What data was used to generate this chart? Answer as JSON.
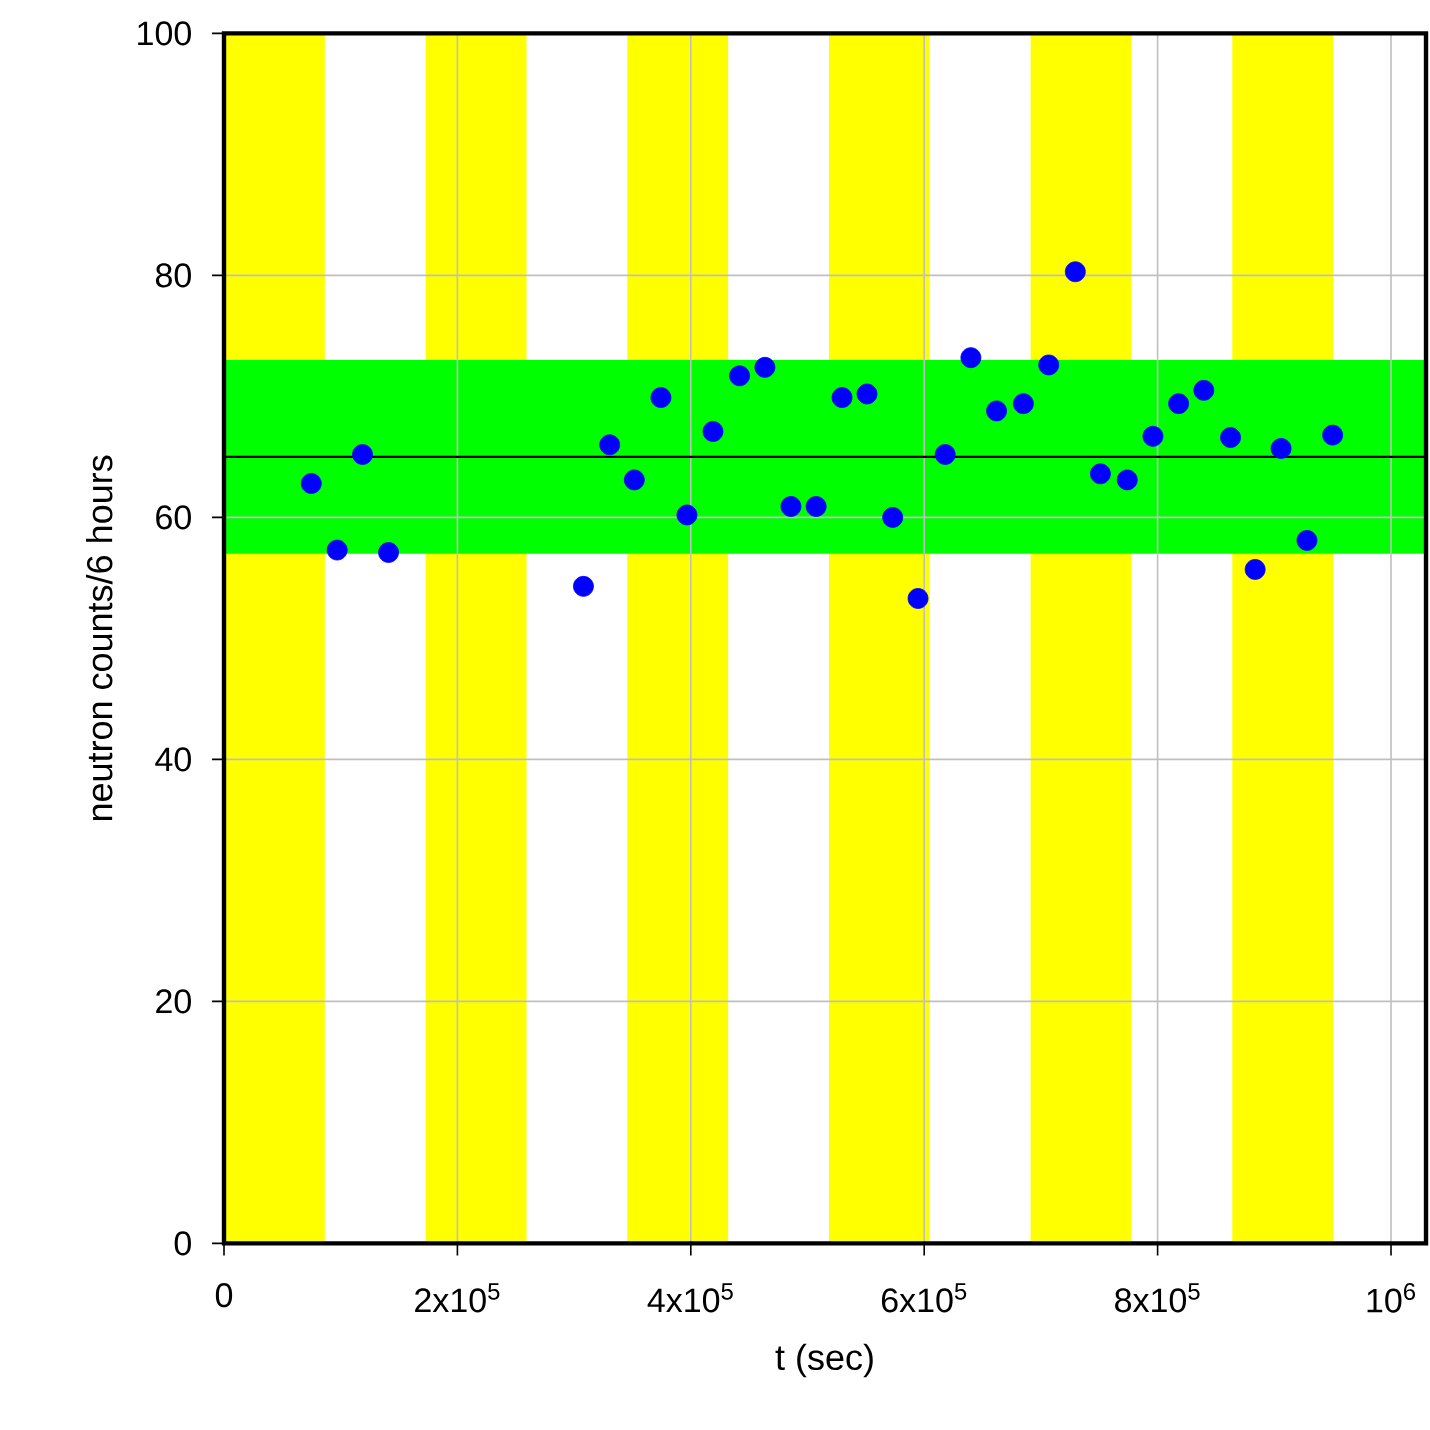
{
  "chart_data": {
    "type": "scatter",
    "xlabel": "t (sec)",
    "ylabel": "neutron counts/6 hours",
    "x": [
      74800,
      97000,
      118700,
      141000,
      308000,
      330500,
      351600,
      374400,
      396700,
      419000,
      441800,
      463500,
      485800,
      507400,
      529600,
      551000,
      573000,
      594700,
      618000,
      640000,
      662000,
      685000,
      706700,
      729500,
      751000,
      774000,
      796000,
      818000,
      839600,
      862500,
      883600,
      905800,
      928000,
      950000
    ],
    "series": [
      {
        "color": "#0000ff",
        "values": [
          62.8,
          57.3,
          65.2,
          57.1,
          54.3,
          66.0,
          63.1,
          69.9,
          60.2,
          67.1,
          71.7,
          72.4,
          60.9,
          60.9,
          69.9,
          70.2,
          60.0,
          53.3,
          65.2,
          73.2,
          68.8,
          69.4,
          72.6,
          80.3,
          63.6,
          63.1,
          66.7,
          69.4,
          70.5,
          66.6,
          55.7,
          65.7,
          58.1,
          66.8
        ]
      }
    ],
    "xlim": [
      0,
      1030000
    ],
    "ylim": [
      0,
      100
    ],
    "xticks": [
      0,
      {
        "value": 200000,
        "label": "2x10$^{5}$"
      },
      {
        "value": 400000,
        "label": "4x10$^{5}$"
      },
      {
        "value": 600000,
        "label": "6x10$^{5}$"
      },
      {
        "value": 800000,
        "label": "8x10$^{5}$"
      },
      {
        "value": 1000000,
        "label": "10$^{6}$"
      }
    ],
    "yticks": [
      0,
      20,
      40,
      60,
      80,
      100
    ],
    "grid": true,
    "marker": "circle",
    "ref_lines": [
      {
        "axis": "y",
        "value": 65,
        "color": "#000000"
      }
    ],
    "bands": [
      {
        "axis": "x",
        "from": 0,
        "to": 86400,
        "color": "#ffff00"
      },
      {
        "axis": "x",
        "from": 172800,
        "to": 259200,
        "color": "#ffff00"
      },
      {
        "axis": "x",
        "from": 345600,
        "to": 432000,
        "color": "#ffff00"
      },
      {
        "axis": "x",
        "from": 518400,
        "to": 604800,
        "color": "#ffff00"
      },
      {
        "axis": "x",
        "from": 691200,
        "to": 777600,
        "color": "#ffff00"
      },
      {
        "axis": "x",
        "from": 864000,
        "to": 950400,
        "color": "#ffff00"
      },
      {
        "axis": "y",
        "from": 57,
        "to": 73,
        "color": "#00ff00"
      }
    ]
  }
}
